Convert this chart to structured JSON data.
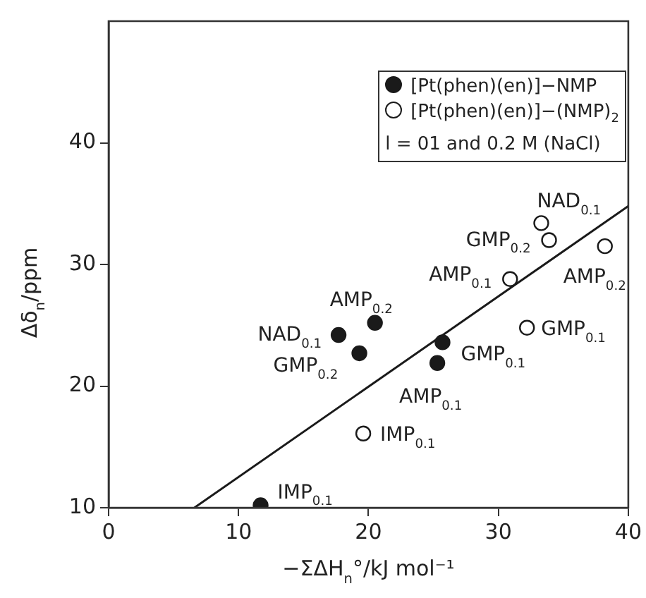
{
  "chart_data": {
    "type": "scatter",
    "xlabel": "−ΣΔH$_{n}$°/kJ mol⁻¹",
    "ylabel": "Δδ$_{n}$/ppm",
    "xlim": [
      0,
      40
    ],
    "ylim": [
      10,
      50
    ],
    "xticks": [
      0,
      10,
      20,
      30,
      40
    ],
    "yticks": [
      10,
      20,
      30,
      40
    ],
    "grid": false,
    "legend": "top right",
    "marker": "circle",
    "series": [
      {
        "name": "[Pt(phen)(en)]−NMP",
        "color": "#1a1a1a",
        "x": [
          11.7,
          17.7,
          20.5,
          19.3,
          25.7,
          25.3
        ],
        "values": [
          10.2,
          24.2,
          25.2,
          22.7,
          23.6,
          21.9
        ]
      },
      {
        "name": "[Pt(phen)(en)]−(NMP)$_{2}$",
        "color": "#ffffff",
        "x": [
          19.6,
          30.9,
          33.3,
          33.9,
          38.2,
          32.2
        ],
        "values": [
          16.1,
          28.8,
          33.4,
          32.0,
          31.5,
          24.8
        ]
      },
      {
        "type": "line",
        "color": "#1a1a1a",
        "marker": "none",
        "x": [
          6.6,
          40
        ],
        "values": [
          10,
          34.8
        ]
      }
    ],
    "annotations": [
      "l = 01 and 0.2 M (NaCl)",
      {
        "text": "IMP$_{0.1}$",
        "x": 11.7,
        "y": 10.2
      },
      {
        "text": "NAD$_{0.1}$",
        "x": 17.7,
        "y": 24.2
      },
      {
        "text": "AMP$_{0.2}$",
        "x": 20.5,
        "y": 25.2
      },
      {
        "text": "GMP$_{0.2}$",
        "x": 19.3,
        "y": 22.7
      },
      {
        "text": "GMP$_{0.1}$",
        "x": 25.7,
        "y": 23.6
      },
      {
        "text": "AMP$_{0.1}$",
        "x": 25.3,
        "y": 21.9
      },
      {
        "text": "IMP$_{0.1}$",
        "x": 19.6,
        "y": 16.1
      },
      {
        "text": "AMP$_{0.1}$",
        "x": 30.9,
        "y": 28.8
      },
      {
        "text": "NAD$_{0.1}$",
        "x": 33.3,
        "y": 33.4
      },
      {
        "text": "GMP$_{0.2}$",
        "x": 33.9,
        "y": 32.0
      },
      {
        "text": "AMP$_{0.2}$",
        "x": 38.2,
        "y": 31.5
      },
      {
        "text": "GMP$_{0.1}$",
        "x": 32.2,
        "y": 24.8
      }
    ]
  }
}
